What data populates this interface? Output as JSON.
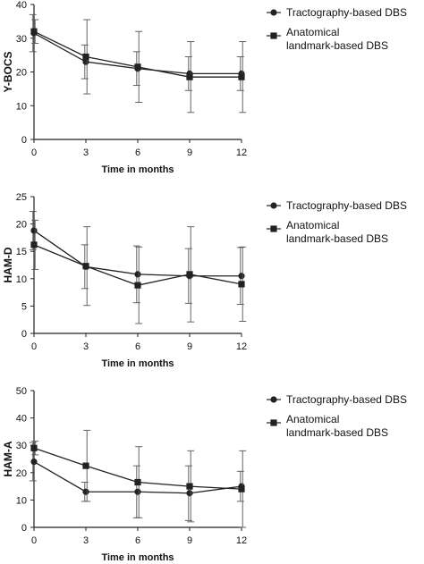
{
  "chart_data": [
    {
      "type": "line",
      "title": "",
      "xlabel": "Time in months",
      "ylabel": "Y-BOCS",
      "x": [
        0,
        3,
        6,
        9,
        12
      ],
      "xlim": [
        0,
        12
      ],
      "ylim": [
        0,
        40
      ],
      "yticks": [
        0,
        10,
        20,
        30,
        40
      ],
      "xticks": [
        0,
        3,
        6,
        9,
        12
      ],
      "grid": false,
      "legend_position": "right",
      "series": [
        {
          "name": "Tractography-based DBS",
          "marker": "circle",
          "values": [
            31.5,
            23,
            21,
            19.5,
            19.5
          ],
          "error": [
            5.5,
            5,
            5,
            5,
            5
          ]
        },
        {
          "name": "Anatomical landmark-based DBS",
          "marker": "square",
          "values": [
            32,
            24.5,
            21.5,
            18.5,
            18.5
          ],
          "error": [
            3.5,
            11,
            10.5,
            10.5,
            10.5
          ]
        }
      ]
    },
    {
      "type": "line",
      "title": "",
      "xlabel": "Time in months",
      "ylabel": "HAM-D",
      "x": [
        0,
        3,
        6,
        9,
        12
      ],
      "xlim": [
        0,
        12
      ],
      "ylim": [
        0,
        25
      ],
      "yticks": [
        0,
        5,
        10,
        15,
        20,
        25
      ],
      "xticks": [
        0,
        3,
        6,
        9,
        12
      ],
      "grid": false,
      "legend_position": "right",
      "series": [
        {
          "name": "Tractography-based DBS",
          "marker": "circle",
          "values": [
            18.8,
            12.2,
            10.8,
            10.5,
            10.5
          ],
          "error": [
            3.5,
            4,
            5.2,
            5,
            5.2
          ]
        },
        {
          "name": "Anatomical landmark-based DBS",
          "marker": "square",
          "values": [
            16.2,
            12.3,
            8.8,
            10.8,
            9
          ],
          "error": [
            4.5,
            7.2,
            7,
            8.7,
            6.8
          ]
        }
      ]
    },
    {
      "type": "line",
      "title": "",
      "xlabel": "Time in months",
      "ylabel": "HAM-A",
      "x": [
        0,
        3,
        6,
        9,
        12
      ],
      "xlim": [
        0,
        12
      ],
      "ylim": [
        0,
        50
      ],
      "yticks": [
        0,
        10,
        20,
        30,
        40,
        50
      ],
      "xticks": [
        0,
        3,
        6,
        9,
        12
      ],
      "grid": false,
      "legend_position": "right",
      "series": [
        {
          "name": "Tractography-based DBS",
          "marker": "circle",
          "values": [
            24,
            13,
            13,
            12.5,
            15
          ],
          "error": [
            7,
            3.5,
            9.5,
            10,
            5.5
          ]
        },
        {
          "name": "Anatomical landmark-based DBS",
          "marker": "square",
          "values": [
            29,
            22.5,
            16.5,
            15,
            14
          ],
          "error": [
            2.5,
            13,
            13,
            13,
            14
          ]
        }
      ]
    }
  ],
  "legend": {
    "item1_label": "Tractography-based DBS",
    "item2_line1": "Anatomical",
    "item2_line2": "landmark-based DBS"
  },
  "colors": {
    "line": "#222222",
    "error_bar": "#555555"
  }
}
